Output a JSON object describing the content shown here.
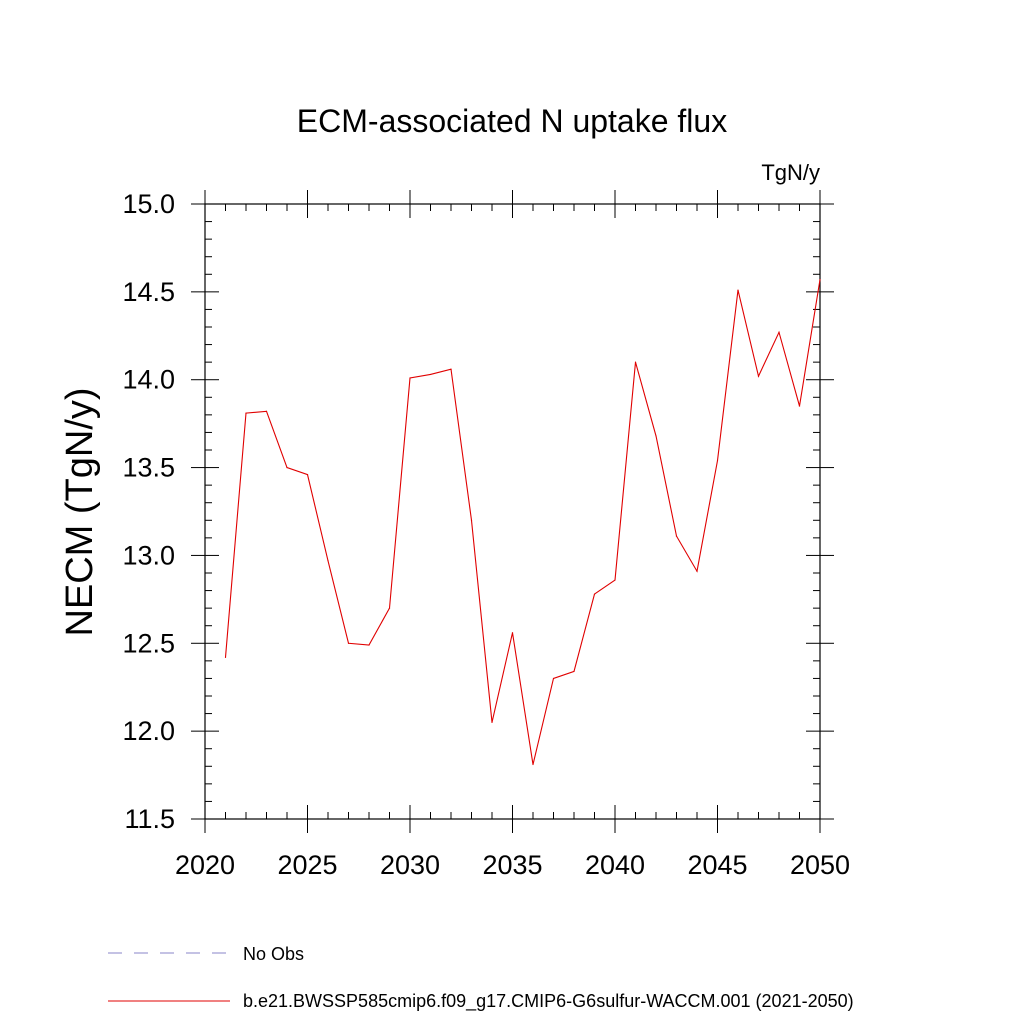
{
  "chart_data": {
    "type": "line",
    "title": "ECM-associated N uptake flux",
    "units": "TgN/y",
    "ylabel": "NECM  (TgN/y)",
    "xlabel": "",
    "xlim": [
      2020,
      2050
    ],
    "ylim": [
      11.5,
      15.0
    ],
    "x_ticks": [
      "2020",
      "2025",
      "2030",
      "2035",
      "2040",
      "2045",
      "2050"
    ],
    "y_ticks": [
      "11.5",
      "12.0",
      "12.5",
      "13.0",
      "13.5",
      "14.0",
      "14.5",
      "15.0"
    ],
    "grid": false,
    "legend_position": "bottom",
    "series": [
      {
        "name": "b.e21.BWSSP585cmip6.f09_g17.CMIP6-G6sulfur-WACCM.001 (2021-2050)",
        "color": "#e00000",
        "x": [
          2021,
          2022,
          2023,
          2024,
          2025,
          2026,
          2027,
          2028,
          2029,
          2030,
          2031,
          2032,
          2033,
          2034,
          2035,
          2036,
          2037,
          2038,
          2039,
          2040,
          2041,
          2042,
          2043,
          2044,
          2045,
          2046,
          2047,
          2048,
          2049,
          2050
        ],
        "values": [
          12.42,
          13.81,
          13.82,
          13.5,
          13.46,
          12.97,
          12.5,
          12.49,
          12.7,
          14.01,
          14.03,
          14.06,
          13.2,
          12.05,
          12.56,
          11.81,
          12.3,
          12.34,
          12.78,
          12.86,
          14.1,
          13.68,
          13.11,
          12.91,
          13.54,
          14.51,
          14.02,
          14.27,
          13.85,
          14.57
        ]
      }
    ],
    "legend": [
      {
        "label": "No Obs",
        "style": "dashed",
        "color": "#8a86c8"
      },
      {
        "label": "b.e21.BWSSP585cmip6.f09_g17.CMIP6-G6sulfur-WACCM.001 (2021-2050)",
        "style": "solid",
        "color": "#e00000"
      }
    ]
  }
}
